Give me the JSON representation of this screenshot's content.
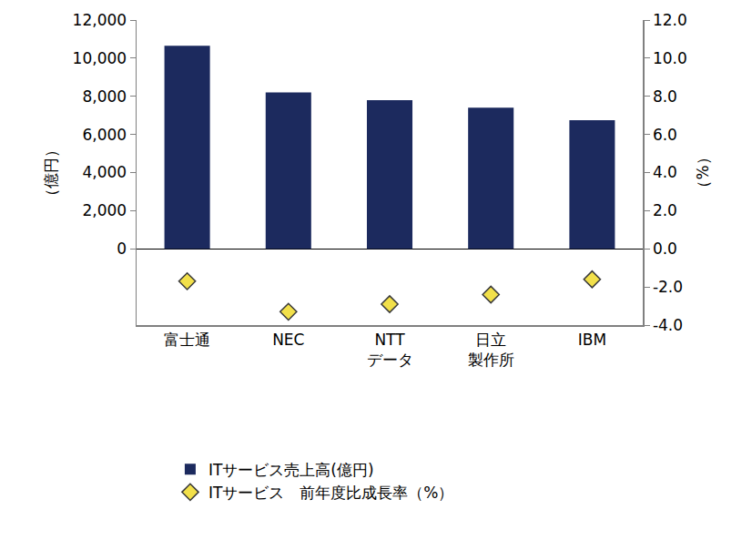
{
  "chart_data": {
    "type": "bar",
    "categories": [
      "富士通",
      "NEC",
      "NTT\nデータ",
      "日立\n製作所",
      "IBM"
    ],
    "series": [
      {
        "name": "ITサービス売上高(億円)",
        "type": "bar",
        "color": "#1c2a5e",
        "axis": "y",
        "values": [
          10650,
          8200,
          7800,
          7400,
          6750
        ]
      },
      {
        "name": "ITサービス　前年度比成長率（%）",
        "type": "scatter",
        "marker": "diamond",
        "color": "#f2e04a",
        "axis": "y2",
        "values": [
          -1.7,
          -3.3,
          -2.9,
          -2.4,
          -1.6
        ]
      }
    ],
    "y_label": "（億円）",
    "y2_label": "（%）",
    "ylim": [
      -4000,
      12000
    ],
    "yticks": [
      0,
      {
        "value": 2000,
        "label": "2,000"
      },
      {
        "value": 4000,
        "label": "4,000"
      },
      {
        "value": 6000,
        "label": "6,000"
      },
      {
        "value": 8000,
        "label": "8,000"
      },
      {
        "value": 10000,
        "label": "10,000"
      },
      {
        "value": 12000,
        "label": "12,000"
      }
    ],
    "y2lim": [
      -4,
      12
    ],
    "y2ticks": [
      {
        "value": -4,
        "label": "-4.0"
      },
      {
        "value": -2,
        "label": "-2.0"
      },
      {
        "value": 0,
        "label": "0.0"
      },
      {
        "value": 2,
        "label": "2.0"
      },
      {
        "value": 4,
        "label": "4.0"
      },
      {
        "value": 6,
        "label": "6.0"
      },
      {
        "value": 8,
        "label": "8.0"
      },
      {
        "value": 10,
        "label": "10.0"
      },
      {
        "value": 12,
        "label": "12.0"
      }
    ],
    "grid": false,
    "legend": "bottom"
  }
}
